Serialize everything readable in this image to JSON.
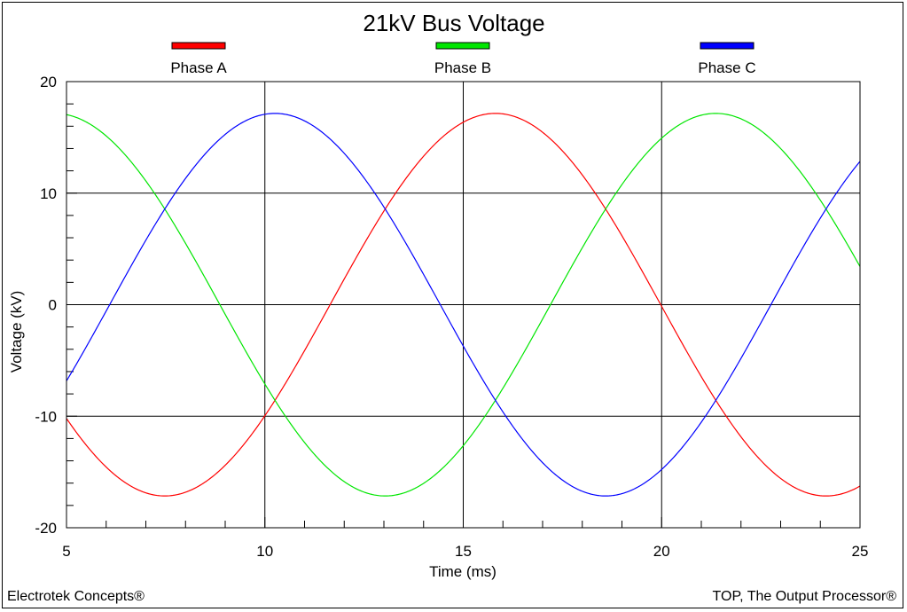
{
  "chart_data": {
    "type": "line",
    "title": "21kV Bus Voltage",
    "xlabel": "Time (ms)",
    "ylabel": "Voltage (kV)",
    "xlim": [
      5,
      25
    ],
    "ylim": [
      -20,
      20
    ],
    "xticks": [
      5,
      10,
      15,
      20,
      25
    ],
    "yticks": [
      -20,
      -10,
      0,
      10,
      20
    ],
    "grid": true,
    "legend_position": "top",
    "series": [
      {
        "name": "Phase A",
        "color": "#ff0000",
        "amplitude": 17.15,
        "frequency_hz": 60,
        "phase_deg": 18.5
      },
      {
        "name": "Phase B",
        "color": "#00e600",
        "amplitude": 17.15,
        "frequency_hz": 60,
        "phase_deg": -101.5
      },
      {
        "name": "Phase C",
        "color": "#0000ff",
        "amplitude": 17.15,
        "frequency_hz": 60,
        "phase_deg": 138.5
      }
    ]
  },
  "footer": {
    "left": "Electrotek Concepts®",
    "right": "TOP, The Output Processor®"
  }
}
